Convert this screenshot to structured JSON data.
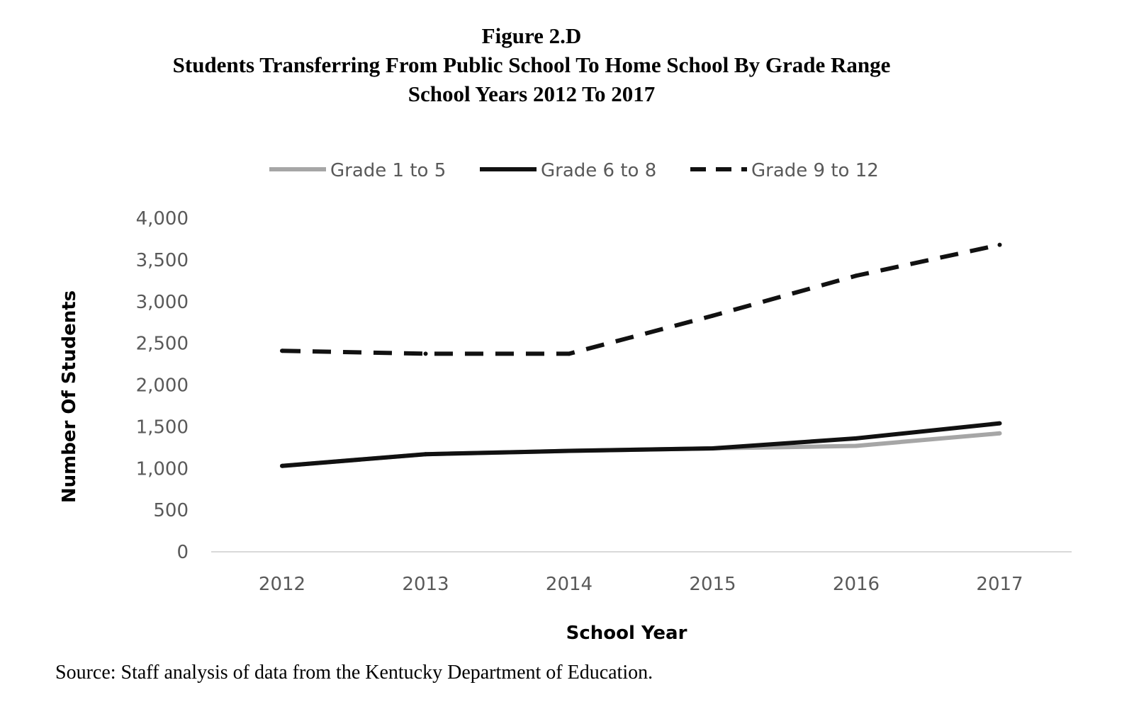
{
  "figure_label": "Figure 2.D",
  "title_line1": "Students Transferring From Public School To Home School By Grade Range",
  "title_line2": "School Years 2012 To 2017",
  "source": "Source: Staff analysis of data from the Kentucky Department of Education.",
  "chart_data": {
    "type": "line",
    "x": [
      "2012",
      "2013",
      "2014",
      "2015",
      "2016",
      "2017"
    ],
    "series": [
      {
        "name": "Grade 1 to 5",
        "values": [
          1030,
          1170,
          1210,
          1240,
          1270,
          1420
        ],
        "color": "#a6a6a6",
        "style": "solid"
      },
      {
        "name": "Grade 6 to 8",
        "values": [
          1030,
          1170,
          1210,
          1240,
          1360,
          1540
        ],
        "color": "#111111",
        "style": "solid"
      },
      {
        "name": "Grade 9 to 12",
        "values": [
          2410,
          2375,
          2375,
          2830,
          3310,
          3680
        ],
        "color": "#111111",
        "style": "dashed"
      }
    ],
    "xlabel": "School Year",
    "ylabel": "Number Of Students",
    "ylim": [
      0,
      4000
    ],
    "yticks": [
      "0",
      "500",
      "1,000",
      "1,500",
      "2,000",
      "2,500",
      "3,000",
      "3,500",
      "4,000"
    ],
    "ytick_values": [
      0,
      500,
      1000,
      1500,
      2000,
      2500,
      3000,
      3500,
      4000
    ],
    "grid": false,
    "legend_position": "top"
  }
}
